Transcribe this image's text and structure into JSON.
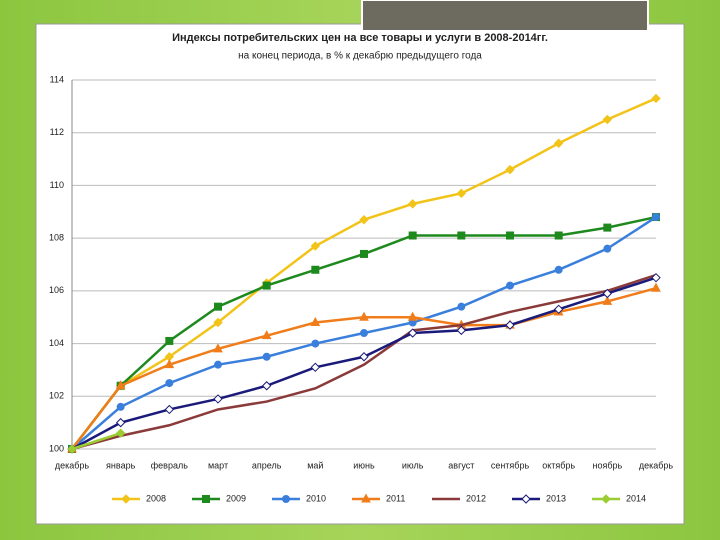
{
  "chart_data": {
    "type": "line",
    "title": "Индексы потребительских цен на все товары и услуги в 2008-2014гг.",
    "subtitle": "на конец периода, в % к декабрю предыдущего года",
    "categories": [
      "декабрь",
      "январь",
      "февраль",
      "март",
      "апрель",
      "май",
      "июнь",
      "июль",
      "август",
      "сентябрь",
      "октябрь",
      "ноябрь",
      "декабрь"
    ],
    "ylim": [
      100,
      114
    ],
    "yticks": [
      100,
      102,
      104,
      106,
      108,
      110,
      112,
      114
    ],
    "grid": true,
    "legend": "bottom",
    "series": [
      {
        "name": "2008",
        "color": "#f2c318",
        "marker": "diamond",
        "values": [
          100,
          102.4,
          103.5,
          104.8,
          106.3,
          107.7,
          108.7,
          109.3,
          109.7,
          110.6,
          111.6,
          112.5,
          113.3
        ]
      },
      {
        "name": "2009",
        "color": "#1e8a1e",
        "marker": "square",
        "values": [
          100,
          102.4,
          104.1,
          105.4,
          106.2,
          106.8,
          107.4,
          108.1,
          108.1,
          108.1,
          108.1,
          108.4,
          108.8
        ]
      },
      {
        "name": "2010",
        "color": "#3a7fdc",
        "marker": "circle",
        "values": [
          100,
          101.6,
          102.5,
          103.2,
          103.5,
          104.0,
          104.4,
          104.8,
          105.4,
          106.2,
          106.8,
          107.6,
          108.8
        ]
      },
      {
        "name": "2011",
        "color": "#f07d1a",
        "marker": "triangle",
        "values": [
          100,
          102.4,
          103.2,
          103.8,
          104.3,
          104.8,
          105.0,
          105.0,
          104.7,
          104.7,
          105.2,
          105.6,
          106.1
        ]
      },
      {
        "name": "2012",
        "color": "#8b3a3a",
        "marker": "none",
        "values": [
          100,
          100.5,
          100.9,
          101.5,
          101.8,
          102.3,
          103.2,
          104.5,
          104.7,
          105.2,
          105.6,
          106.0,
          106.6
        ]
      },
      {
        "name": "2013",
        "color": "#1a1a7a",
        "marker": "open-diamond",
        "values": [
          100,
          101.0,
          101.5,
          101.9,
          102.4,
          103.1,
          103.5,
          104.4,
          104.5,
          104.7,
          105.3,
          105.9,
          106.5
        ]
      },
      {
        "name": "2014",
        "color": "#9acd32",
        "marker": "diamond",
        "values": [
          100,
          100.6,
          null,
          null,
          null,
          null,
          null,
          null,
          null,
          null,
          null,
          null,
          null
        ]
      }
    ]
  }
}
